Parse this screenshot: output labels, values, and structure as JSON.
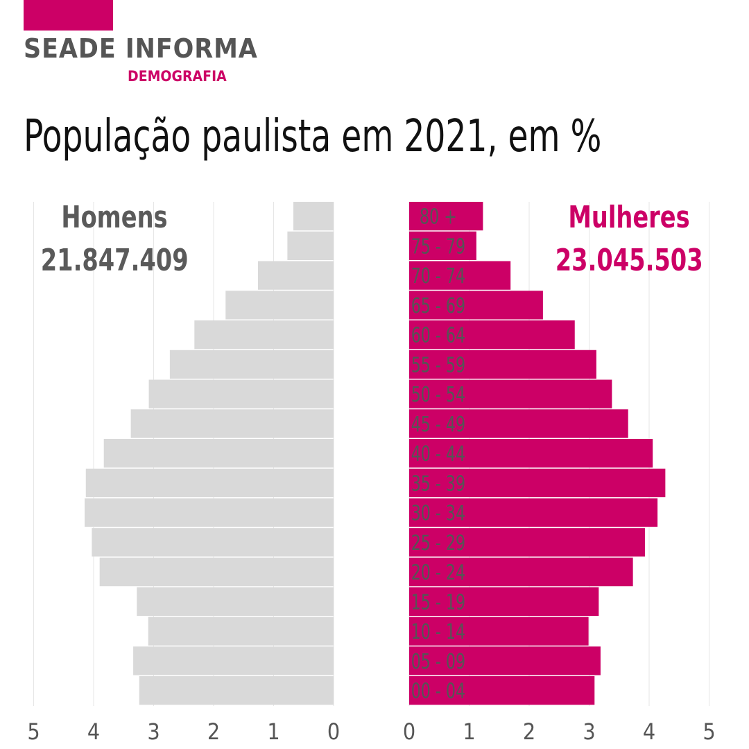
{
  "brand": {
    "name": "SEADE INFORMA",
    "section": "DEMOGRAFIA",
    "accent_color": "#cc0066"
  },
  "chart_data": {
    "type": "bar",
    "orientation": "horizontal",
    "layout": "population-pyramid",
    "title": "População paulista em 2021, em %",
    "categories": [
      "80 +",
      "75 - 79",
      "70 - 74",
      "65 - 69",
      "60 - 64",
      "55 - 59",
      "50 - 54",
      "45 - 49",
      "40 - 44",
      "35 - 39",
      "30 - 34",
      "25 - 29",
      "20 - 24",
      "15 - 19",
      "10 - 14",
      "05 - 09",
      "00 - 04"
    ],
    "series": [
      {
        "name": "Homens",
        "total": "21.847.409",
        "color": "#d9d9d9",
        "label_color": "#5a5a5a",
        "values": [
          0.67,
          0.77,
          1.26,
          1.8,
          2.32,
          2.73,
          3.08,
          3.38,
          3.83,
          4.13,
          4.15,
          4.03,
          3.9,
          3.28,
          3.09,
          3.34,
          3.24
        ]
      },
      {
        "name": "Mulheres",
        "total": "23.045.503",
        "color": "#cc0066",
        "label_color": "#cc0066",
        "values": [
          1.23,
          1.12,
          1.69,
          2.23,
          2.76,
          3.12,
          3.38,
          3.65,
          4.06,
          4.27,
          4.14,
          3.93,
          3.73,
          3.16,
          2.99,
          3.19,
          3.09
        ]
      }
    ],
    "x_ticks": [
      5,
      4,
      3,
      2,
      1,
      0
    ],
    "xlim": [
      0,
      5
    ],
    "grid": true,
    "legend": "top-left / top-right"
  }
}
